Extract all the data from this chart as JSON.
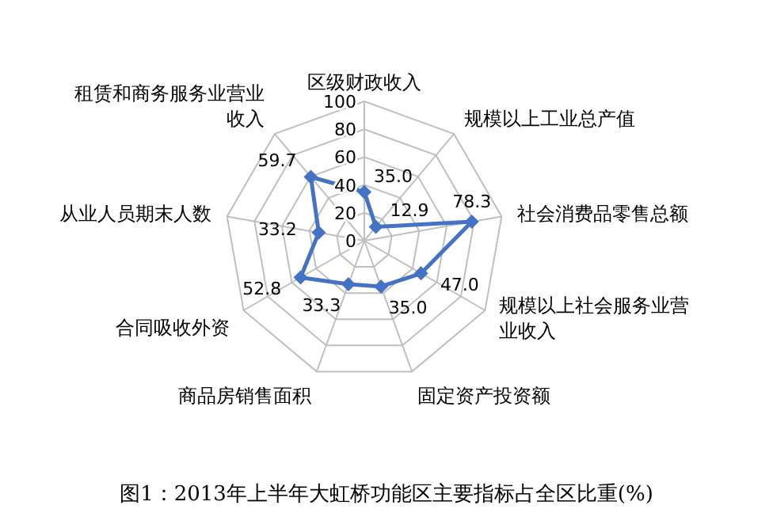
{
  "chart_data": {
    "type": "radar",
    "categories": [
      "区级财政收入",
      "规模以上工业总产值",
      "社会消费品零售总额",
      "规模以上社会服务业营业收入",
      "固定资产投资额",
      "商品房销售面积",
      "合同吸收外资",
      "从业人员期末人数",
      "租赁和商务服务业营业收入"
    ],
    "series": [
      {
        "color": "#4472c4",
        "values": [
          35.0,
          12.9,
          78.3,
          47.0,
          35.0,
          33.3,
          52.8,
          33.2,
          59.7
        ],
        "value_labels": [
          "35.0",
          "12.9",
          "78.3",
          "47.0",
          "35.0",
          "33.3",
          "52.8",
          "33.2",
          "59.7"
        ]
      }
    ],
    "ylim": [
      0,
      100
    ],
    "yticks": [
      0,
      20,
      40,
      60,
      80,
      100
    ],
    "marker": "diamond",
    "grid": true,
    "annotations": [
      "图1：2013年上半年大虹桥功能区主要指标占全区比重(%)"
    ]
  }
}
